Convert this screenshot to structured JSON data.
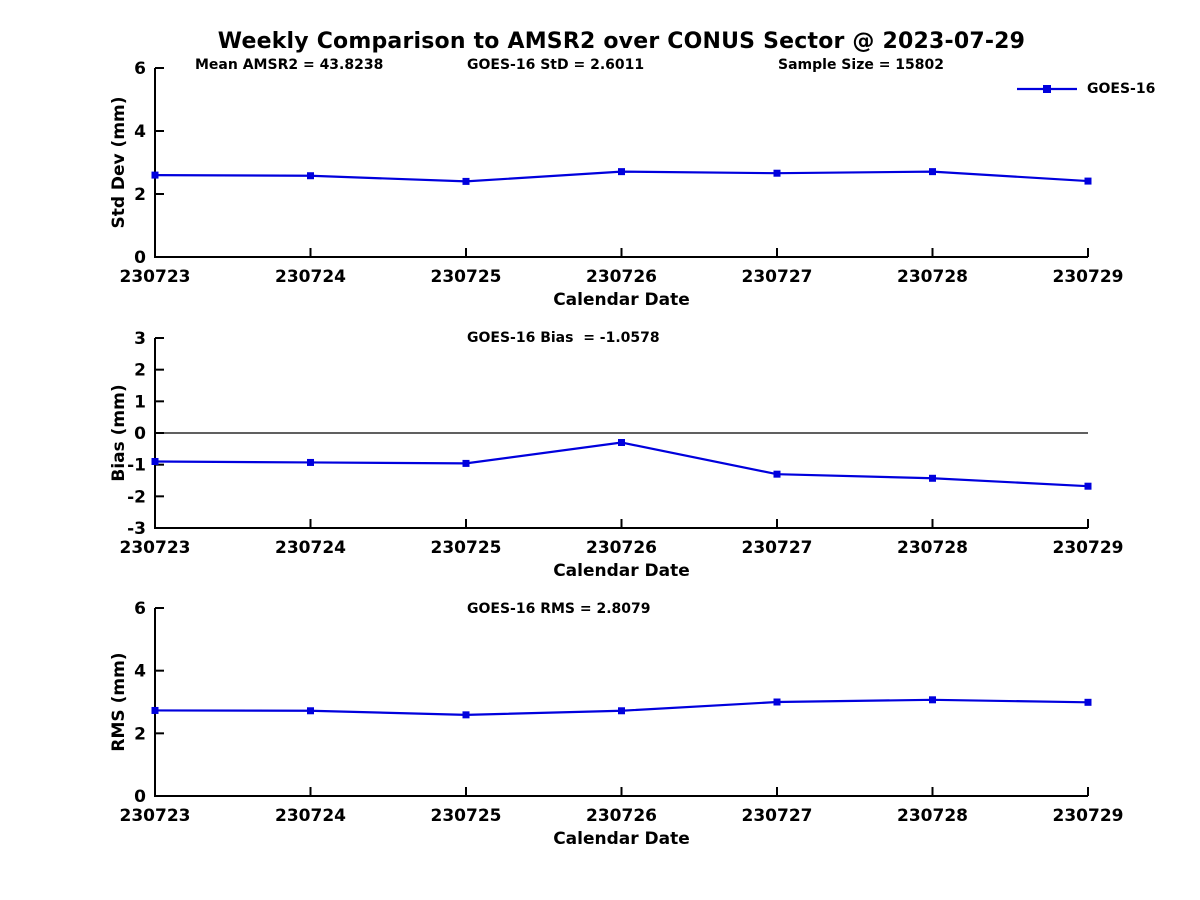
{
  "header": {
    "title": "Weekly Comparison to AMSR2 over CONUS Sector @ 2023-07-29"
  },
  "colors": {
    "series_blue": "#0000dd",
    "axis_black": "#000000",
    "background": "#ffffff"
  },
  "legend": {
    "label": "GOES-16",
    "position": "outside-top-right",
    "marker": "square",
    "line_color": "#0000dd"
  },
  "chart_data": [
    {
      "id": "std-dev",
      "type": "line",
      "categories": [
        "230723",
        "230724",
        "230725",
        "230726",
        "230727",
        "230728",
        "230729"
      ],
      "series": [
        {
          "name": "GOES-16",
          "values": [
            2.6,
            2.58,
            2.4,
            2.71,
            2.66,
            2.71,
            2.41
          ]
        }
      ],
      "xlabel": "Calendar Date",
      "ylabel": "Std Dev (mm)",
      "ylim": [
        0,
        6
      ],
      "yticks": [
        6,
        4,
        2,
        0
      ],
      "grid": false,
      "zero_line": false,
      "legend": {
        "label": "GOES-16",
        "position": "outside-top-right"
      },
      "annotations": [
        "Mean AMSR2 = 43.8238",
        "GOES-16 StD = 2.6011",
        "Sample Size = 15802"
      ]
    },
    {
      "id": "bias",
      "type": "line",
      "categories": [
        "230723",
        "230724",
        "230725",
        "230726",
        "230727",
        "230728",
        "230729"
      ],
      "series": [
        {
          "name": "GOES-16",
          "values": [
            -0.9,
            -0.93,
            -0.96,
            -0.3,
            -1.3,
            -1.43,
            -1.68
          ]
        }
      ],
      "xlabel": "Calendar Date",
      "ylabel": "Bias (mm)",
      "ylim": [
        -3,
        3
      ],
      "yticks": [
        3,
        2,
        1,
        0,
        -1,
        -2,
        -3
      ],
      "grid": false,
      "zero_line": true,
      "annotations": [
        "GOES-16 Bias  = -1.0578"
      ]
    },
    {
      "id": "rms",
      "type": "line",
      "categories": [
        "230723",
        "230724",
        "230725",
        "230726",
        "230727",
        "230728",
        "230729"
      ],
      "series": [
        {
          "name": "GOES-16",
          "values": [
            2.73,
            2.72,
            2.59,
            2.72,
            3.0,
            3.07,
            2.99
          ]
        }
      ],
      "xlabel": "Calendar Date",
      "ylabel": "RMS (mm)",
      "ylim": [
        0,
        6
      ],
      "yticks": [
        6,
        4,
        2,
        0
      ],
      "grid": false,
      "zero_line": false,
      "annotations": [
        "GOES-16 RMS = 2.8079"
      ]
    }
  ]
}
